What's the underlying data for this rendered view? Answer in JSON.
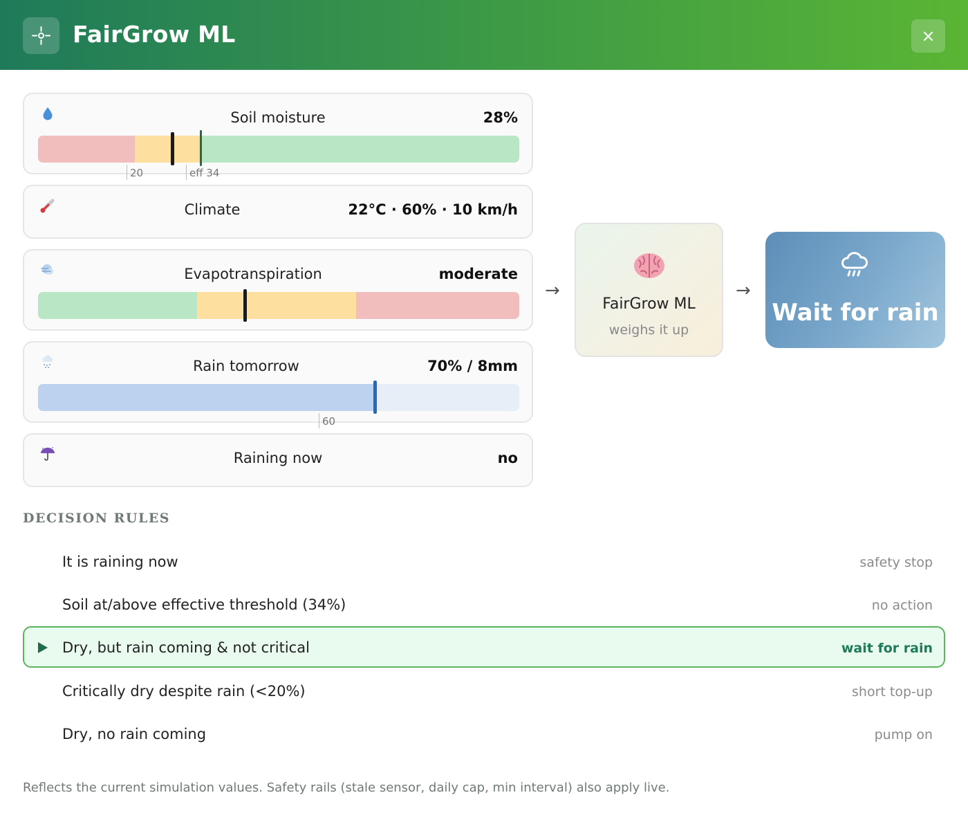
{
  "header": {
    "title": "FairGrow ML",
    "app_icon": "crosshair-icon",
    "close_label": "×"
  },
  "inputs": {
    "soil_moisture": {
      "label": "Soil moisture",
      "value": "28%",
      "icon": "water-drop-icon",
      "percent": 28,
      "threshold_critical": 20,
      "threshold_effective": 34,
      "tick_critical_label": "20",
      "tick_effective_label": "eff 34",
      "colors": {
        "critical": "#f2bdbd",
        "low": "#fde0a0",
        "ok": "#b9e6c4"
      }
    },
    "climate": {
      "label": "Climate",
      "value": "22°C · 60% · 10 km/h",
      "icon": "thermometer-icon"
    },
    "evapotranspiration": {
      "label": "Evapotranspiration",
      "value": "moderate",
      "icon": "wind-icon",
      "level": 0.43
    },
    "rain_tomorrow": {
      "label": "Rain tomorrow",
      "value": "70% / 8mm",
      "icon": "rain-cloud-icon",
      "probability": 70,
      "threshold": 60,
      "tick_label": "60"
    },
    "raining_now": {
      "label": "Raining now",
      "value": "no",
      "icon": "umbrella-icon"
    }
  },
  "flow": {
    "arrow": "→",
    "model": {
      "title": "FairGrow ML",
      "subtitle": "weighs it up",
      "icon": "brain-icon"
    },
    "decision": {
      "label": "Wait for rain",
      "icon": "rain-cloud-icon",
      "color": "#6b9bc3"
    }
  },
  "rules": {
    "title": "DECISION RULES",
    "items": [
      {
        "text": "It is raining now",
        "outcome": "safety stop",
        "active": false
      },
      {
        "text": "Soil at/above effective threshold (34%)",
        "outcome": "no action",
        "active": false
      },
      {
        "text": "Dry, but rain coming & not critical",
        "outcome": "wait for rain",
        "active": true
      },
      {
        "text": "Critically dry despite rain (<20%)",
        "outcome": "short top-up",
        "active": false
      },
      {
        "text": "Dry, no rain coming",
        "outcome": "pump on",
        "active": false
      }
    ]
  },
  "footer": {
    "note": "Reflects the current simulation values. Safety rails (stale sensor, daily cap, min interval) also apply live."
  }
}
